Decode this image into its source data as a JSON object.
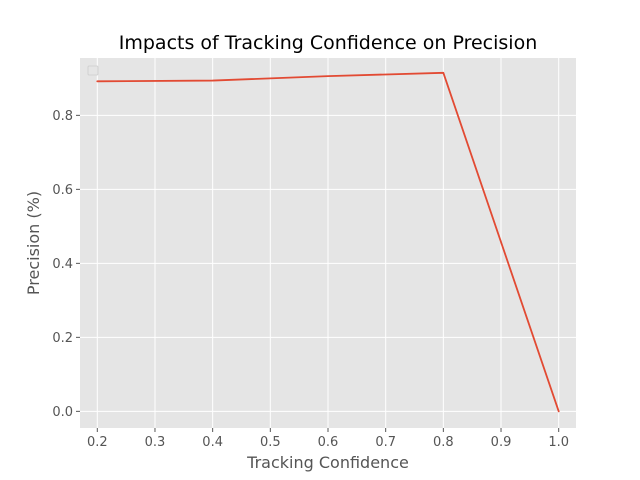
{
  "chart_data": {
    "type": "line",
    "title": "Impacts of Tracking Confidence on Precision",
    "xlabel": "Tracking Confidence",
    "ylabel": "Precision (%)",
    "xlim": [
      0.17,
      1.03
    ],
    "ylim": [
      -0.045,
      0.955
    ],
    "x_ticks": [
      0.2,
      0.3,
      0.4,
      0.5,
      0.6,
      0.7,
      0.8,
      0.9,
      1.0
    ],
    "x_tick_labels": [
      "0.2",
      "0.3",
      "0.4",
      "0.5",
      "0.6",
      "0.7",
      "0.8",
      "0.9",
      "1.0"
    ],
    "y_ticks": [
      0.0,
      0.2,
      0.4,
      0.6,
      0.8
    ],
    "y_tick_labels": [
      "0.0",
      "0.2",
      "0.4",
      "0.6",
      "0.8"
    ],
    "grid": true,
    "legend": {
      "position": "top-left",
      "entries": []
    },
    "series": [
      {
        "name": "",
        "color": "#e24a33",
        "x": [
          0.2,
          0.4,
          0.6,
          0.8,
          1.0
        ],
        "y": [
          0.892,
          0.894,
          0.906,
          0.915,
          0.0
        ]
      }
    ]
  },
  "style": {
    "plot_background": "#e5e5e5",
    "grid_color": "#ffffff",
    "tick_color": "#555555"
  }
}
